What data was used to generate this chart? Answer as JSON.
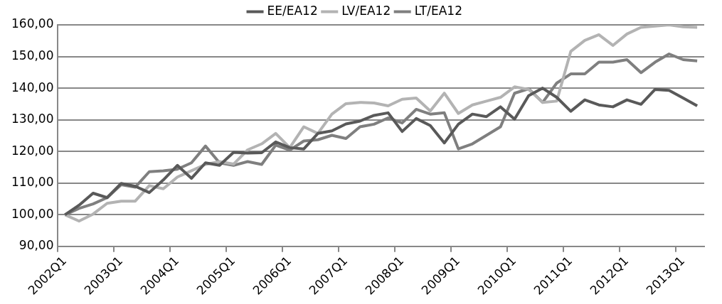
{
  "chart_data": {
    "type": "line",
    "categories": [
      "2002Q1",
      null,
      null,
      null,
      "2003Q1",
      null,
      null,
      null,
      "2004Q1",
      null,
      null,
      null,
      "2005Q1",
      null,
      null,
      null,
      "2006Q1",
      null,
      null,
      null,
      "2007Q1",
      null,
      null,
      null,
      "2008Q1",
      null,
      null,
      null,
      "2009Q1",
      null,
      null,
      null,
      "2010Q1",
      null,
      null,
      null,
      "2011Q1",
      null,
      null,
      null,
      "2012Q1",
      null,
      null,
      null,
      "2013Q1",
      null
    ],
    "series": [
      {
        "name": "EE/EA12",
        "color": "#595959",
        "values": [
          100,
          103,
          106.8,
          105.4,
          109.9,
          109,
          107,
          111,
          115.6,
          111.5,
          116.4,
          115.6,
          119.7,
          119.5,
          119.6,
          123,
          121.2,
          120.8,
          125.7,
          126.5,
          128.7,
          129.6,
          131.4,
          132.2,
          126.3,
          130.4,
          128.2,
          122.7,
          128.6,
          131.8,
          131,
          134.1,
          130.2,
          137.6,
          140,
          137.1,
          132.7,
          136.3,
          134.7,
          134.1,
          136.3,
          134.9,
          139.6,
          139.3,
          136.9,
          134.4
        ]
      },
      {
        "name": "LV/EA12",
        "color": "#b3b3b3",
        "values": [
          100,
          98,
          100.2,
          103.6,
          104.3,
          104.3,
          109.2,
          108.2,
          111.9,
          113.9,
          115.9,
          116.8,
          116,
          120.5,
          122.4,
          125.7,
          121.2,
          127.8,
          125.7,
          131.8,
          135.1,
          135.5,
          135.3,
          134.4,
          136.5,
          136.9,
          132.8,
          138.4,
          132,
          134.7,
          135.9,
          137.1,
          140.4,
          139.6,
          135.5,
          135.9,
          151.6,
          155.1,
          156.9,
          153.5,
          157.1,
          159.2,
          159.6,
          160,
          159.4,
          159.2
        ]
      },
      {
        "name": "LT/EA12",
        "color": "#7f7f7f",
        "values": [
          100,
          102,
          103.4,
          105.4,
          109.5,
          108.7,
          113.6,
          113.9,
          114.4,
          116.4,
          121.7,
          116.4,
          115.6,
          116.8,
          115.9,
          122,
          120.4,
          123.3,
          123.7,
          125.1,
          124.1,
          127.8,
          128.6,
          130.6,
          129,
          133.3,
          131.8,
          132.2,
          120.8,
          122.4,
          125.1,
          127.8,
          138.4,
          139.8,
          135.5,
          141.6,
          144.5,
          144.5,
          148.2,
          148.2,
          149,
          144.9,
          148.2,
          150.8,
          149,
          148.6
        ]
      }
    ],
    "ylim": [
      90,
      160
    ],
    "yticks": [
      {
        "value": 90,
        "label": "90,00"
      },
      {
        "value": 100,
        "label": "100,00"
      },
      {
        "value": 110,
        "label": "110,00"
      },
      {
        "value": 120,
        "label": "120,00"
      },
      {
        "value": 130,
        "label": "130,00"
      },
      {
        "value": 140,
        "label": "140,00"
      },
      {
        "value": 150,
        "label": "150,00"
      },
      {
        "value": 160,
        "label": "160,00"
      }
    ],
    "grid": "y",
    "legend": "top",
    "marker": "none",
    "line_style": "solid"
  }
}
